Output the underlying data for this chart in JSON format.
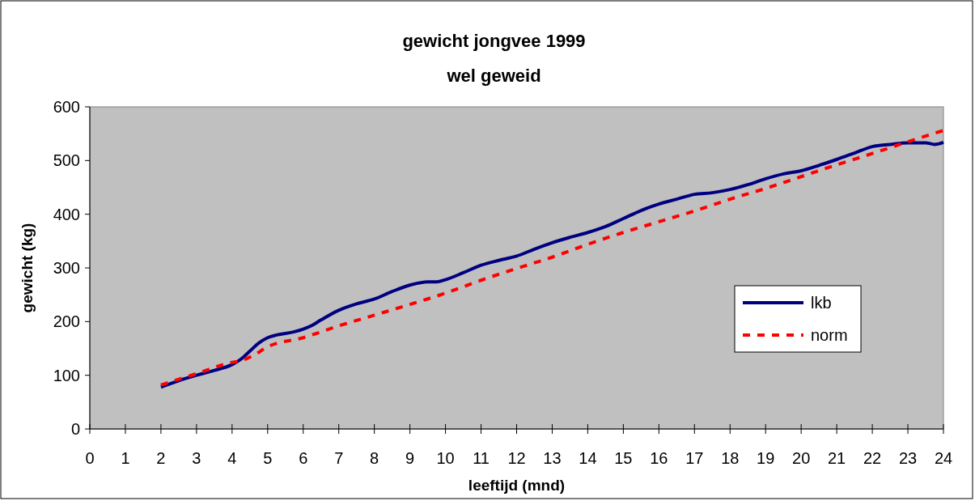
{
  "chart_data": {
    "type": "line",
    "title": "gewicht jongvee 1999",
    "subtitle": "wel geweid",
    "xlabel": "leeftijd (mnd)",
    "ylabel": "gewicht (kg)",
    "xlim": [
      0,
      24
    ],
    "xticks": [
      0,
      1,
      2,
      3,
      4,
      5,
      6,
      7,
      8,
      9,
      10,
      11,
      12,
      13,
      14,
      15,
      16,
      17,
      18,
      19,
      20,
      21,
      22,
      23,
      24
    ],
    "ylim": [
      0,
      600
    ],
    "yticks": [
      0,
      100,
      200,
      300,
      400,
      500,
      600
    ],
    "grid": false,
    "legend": "right",
    "series": [
      {
        "name": "lkb",
        "color": "#000080",
        "line_style": "solid",
        "x": [
          2,
          2.5,
          3,
          3.5,
          4,
          4.25,
          4.5,
          4.75,
          5,
          5.25,
          5.75,
          6,
          6.25,
          6.5,
          7,
          7.5,
          8,
          8.5,
          9,
          9.5,
          9.75,
          10,
          10.5,
          11,
          11.5,
          12,
          12.5,
          13,
          13.5,
          14,
          14.5,
          15,
          15.5,
          16,
          16.5,
          17,
          17.5,
          18,
          18.5,
          19,
          19.5,
          20,
          20.5,
          21,
          21.5,
          22,
          22.5,
          23,
          23.5,
          23.75,
          24
        ],
        "values": [
          78,
          90,
          100,
          109,
          120,
          130,
          145,
          160,
          170,
          175,
          181,
          186,
          193,
          203,
          221,
          233,
          242,
          256,
          268,
          274,
          274,
          278,
          291,
          305,
          314,
          322,
          335,
          347,
          357,
          366,
          377,
          392,
          407,
          419,
          428,
          437,
          440,
          446,
          455,
          466,
          475,
          481,
          491,
          502,
          514,
          526,
          530,
          533,
          533,
          530,
          534
        ]
      },
      {
        "name": "norm",
        "color": "#ff0000",
        "line_style": "dashed",
        "x": [
          2,
          3,
          4,
          4.25,
          4.6,
          5,
          6,
          7,
          8,
          9,
          10,
          11,
          12,
          13,
          14,
          15,
          16,
          17,
          18,
          19,
          20,
          21,
          22,
          23,
          24
        ],
        "values": [
          82,
          103,
          124,
          127,
          137,
          153,
          170,
          192,
          212,
          232,
          253,
          277,
          299,
          320,
          344,
          366,
          386,
          406,
          428,
          448,
          470,
          492,
          513,
          535,
          556
        ]
      }
    ]
  }
}
